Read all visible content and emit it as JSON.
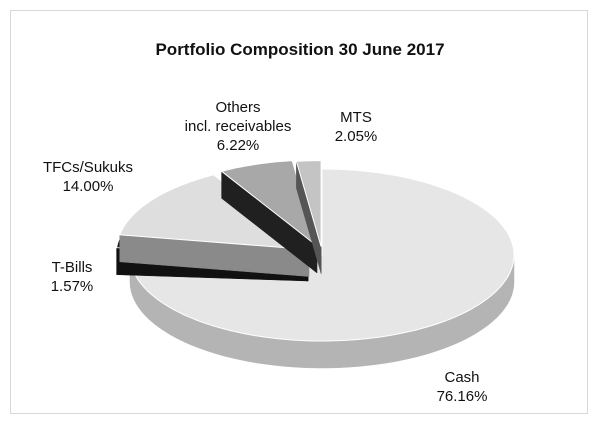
{
  "chart_data": {
    "type": "pie3d",
    "title": "Portfolio Composition 30 June  2017",
    "categories": [
      "Cash",
      "T-Bills",
      "TFCs/Sukuks",
      "Others\nincl. receivables",
      "MTS"
    ],
    "values": [
      76.16,
      1.57,
      14.0,
      6.22,
      2.05
    ],
    "value_labels": [
      "76.16%",
      "1.57%",
      "14.00%",
      "6.22%",
      "2.05%"
    ],
    "colors": [
      "#e6e6e6",
      "#1a1a1a",
      "#dedede",
      "#a8a8a8",
      "#c4c4c4"
    ],
    "side_colors": [
      "#b4b4b4",
      "#111111",
      "#8a8a8a",
      "#202020",
      "#555555"
    ]
  }
}
